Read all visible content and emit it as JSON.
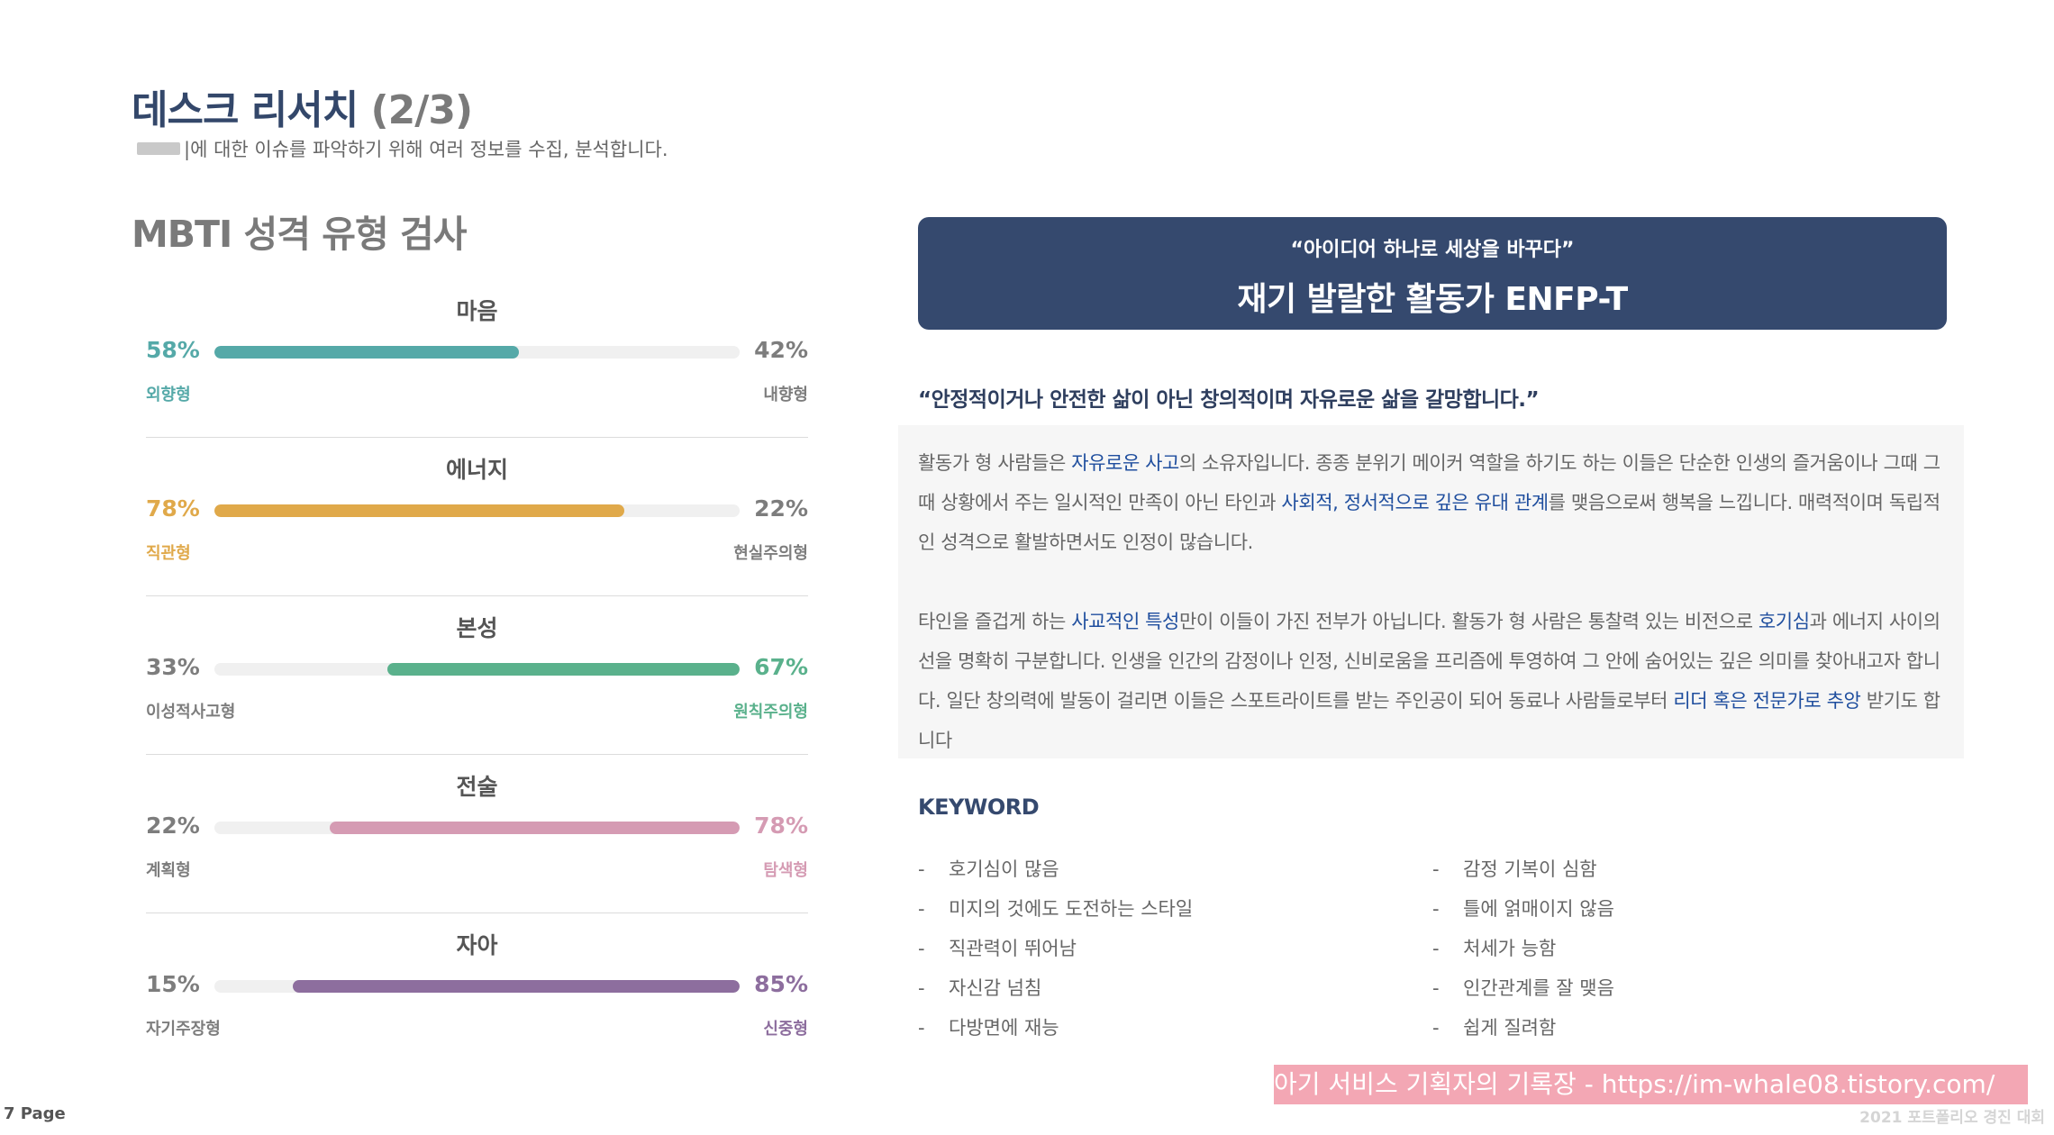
{
  "header": {
    "title_main": "데스크 리서치",
    "title_sub": "(2/3)",
    "description": "|에 대한 이슈를 파악하기 위해 여러 정보를 수집, 분석합니다."
  },
  "mbti": {
    "title": "MBTI 성격 유형 검사",
    "traits": [
      {
        "name": "마음",
        "left_pct": "58%",
        "right_pct": "42%",
        "left_label": "외향형",
        "right_label": "내향형",
        "dominant": "left",
        "fill_fraction": 0.58,
        "color": "#55a9a8"
      },
      {
        "name": "에너지",
        "left_pct": "78%",
        "right_pct": "22%",
        "left_label": "직관형",
        "right_label": "현실주의형",
        "dominant": "left",
        "fill_fraction": 0.78,
        "color": "#e0a94a"
      },
      {
        "name": "본성",
        "left_pct": "33%",
        "right_pct": "67%",
        "left_label": "이성적사고형",
        "right_label": "원칙주의형",
        "dominant": "right",
        "fill_fraction": 0.67,
        "color": "#5ab18c"
      },
      {
        "name": "전술",
        "left_pct": "22%",
        "right_pct": "78%",
        "left_label": "계획형",
        "right_label": "탐색형",
        "dominant": "right",
        "fill_fraction": 0.78,
        "color": "#d59bb3"
      },
      {
        "name": "자아",
        "left_pct": "15%",
        "right_pct": "85%",
        "left_label": "자기주장형",
        "right_label": "신중형",
        "dominant": "right",
        "fill_fraction": 0.85,
        "color": "#8d6e9e"
      }
    ]
  },
  "banner": {
    "quote": "“아이디어 하나로 세상을 바꾸다”",
    "type_name": "재기 발랄한 활동가 ENFP-T"
  },
  "description": {
    "quote": "“안정적이거나 안전한 삶이 아닌 창의적이며 자유로운 삶을 갈망합니다.”",
    "p1": {
      "a": "활동가 형 사람들은 ",
      "b": "자유로운 사고",
      "c": "의 소유자입니다. 종종 분위기 메이커 역할을 하기도 하는 이들은 단순한 인생의 즐거움이나 그때 그때 상황에서 주는 일시적인 만족이 아닌 타인과 ",
      "d": "사회적, 정서적으로 깊은 유대 관계",
      "e": "를 맺음으로써 행복을 느낍니다. 매력적이며 독립적인 성격으로 활발하면서도 인정이 많습니다."
    },
    "p2": {
      "a": "타인을 즐겁게 하는 ",
      "b": "사교적인 특성",
      "c": "만이 이들이 가진 전부가 아닙니다. 활동가 형 사람은 통찰력 있는 비전으로 ",
      "d": "호기심",
      "e": "과 에너지 사이의 선을 명확히 구분합니다. 인생을 인간의 감정이나 인정, 신비로움을 프리즘에 투영하여 그 안에 숨어있는 깊은 의미를 찾아내고자 합니다.  일단 창의력에 발동이 걸리면 이들은 스포트라이트를 받는 주인공이 되어 동료나 사람들로부터 ",
      "f": "리더 혹은 전문가로 추앙",
      "g": " 받기도 합니다"
    }
  },
  "keywords": {
    "title": "KEYWORD",
    "dash": "-",
    "left": [
      "호기심이 많음",
      "미지의 것에도 도전하는 스타일",
      "직관력이 뛰어남",
      "자신감 넘침",
      "다방면에 재능"
    ],
    "right": [
      "감정 기복이 심함",
      "틀에 얽매이지 않음",
      "처세가 능함",
      "인간관계를 잘 맺음",
      "쉽게 질려함"
    ]
  },
  "footer": {
    "watermark": "아기 서비스 기획자의 기록장 - https://im-whale08.tistory.com/",
    "contest": "2021 포트폴리오 경진 대회",
    "page": "7 Page"
  }
}
